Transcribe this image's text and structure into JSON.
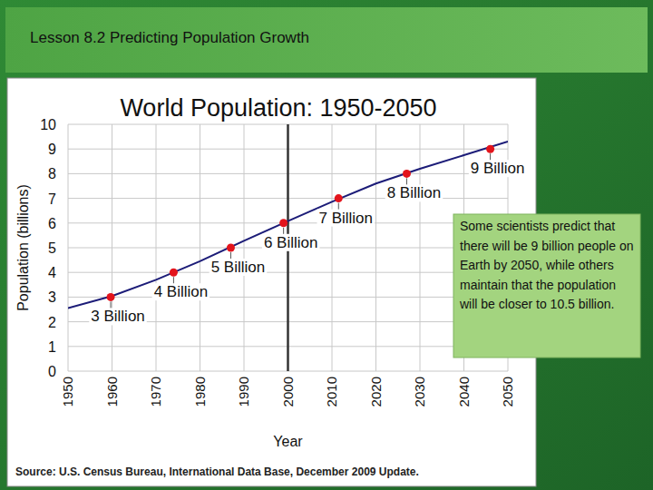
{
  "slide_title": "Lesson 8.2  Predicting Population Growth",
  "note": "Some scientists predict that there will be 9 billion people on Earth by 2050, while others maintain that the population will be closer to 10.5 billion.",
  "chart_data": {
    "type": "line",
    "title": "World Population: 1950-2050",
    "x_label": "Year",
    "y_label": "Population (billions)",
    "source": "Source: U.S. Census Bureau, International Data Base, December 2009 Update.",
    "x": [
      1950,
      1960,
      1970,
      1980,
      1990,
      2000,
      2010,
      2020,
      2030,
      2040,
      2050
    ],
    "values": [
      2.55,
      3.04,
      3.7,
      4.45,
      5.28,
      6.08,
      6.86,
      7.6,
      8.2,
      8.75,
      9.3
    ],
    "color": "#1c1c78",
    "xlim": [
      1950,
      2050
    ],
    "xticks": [
      1950,
      1960,
      1970,
      1980,
      1990,
      2000,
      2010,
      2020,
      2030,
      2040,
      2050
    ],
    "ylim": [
      0,
      10
    ],
    "yticks": [
      0,
      1,
      2,
      3,
      4,
      5,
      6,
      7,
      8,
      9,
      10
    ],
    "grid": true,
    "vline": 2000,
    "milestones": [
      {
        "x": 1959.7,
        "y": 3,
        "label": "3 Billion"
      },
      {
        "x": 1974,
        "y": 4,
        "label": "4 Billion"
      },
      {
        "x": 1987,
        "y": 5,
        "label": "5 Billion"
      },
      {
        "x": 1999,
        "y": 6,
        "label": "6 Billion"
      },
      {
        "x": 2011.5,
        "y": 7,
        "label": "7 Billion"
      },
      {
        "x": 2027,
        "y": 8,
        "label": "8 Billion"
      },
      {
        "x": 2046,
        "y": 9,
        "label": "9 Billion"
      }
    ]
  }
}
